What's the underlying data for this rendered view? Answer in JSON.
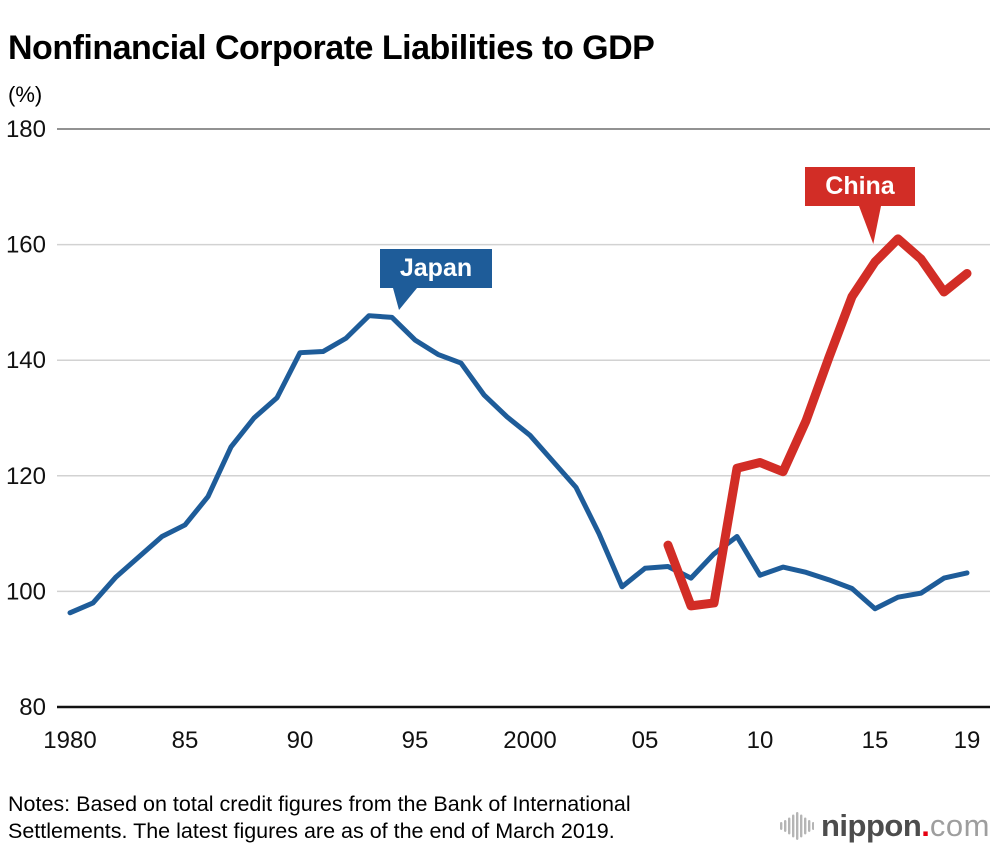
{
  "header": {
    "title": "Nonfinancial Corporate Liabilities to GDP",
    "unit_label": "(%)"
  },
  "chart_data": {
    "type": "line",
    "title": "Nonfinancial Corporate Liabilities to GDP",
    "ylabel": "(%)",
    "xlabel": "",
    "ylim": [
      80,
      180
    ],
    "xlim": [
      1980,
      2019
    ],
    "grid": "horizontal",
    "legend_position": "inline-callouts",
    "y_ticks": [
      180,
      160,
      140,
      120,
      100,
      80
    ],
    "x_ticks": [
      {
        "label": "1980",
        "year": 1980
      },
      {
        "label": "85",
        "year": 1985
      },
      {
        "label": "90",
        "year": 1990
      },
      {
        "label": "95",
        "year": 1995
      },
      {
        "label": "2000",
        "year": 2000
      },
      {
        "label": "05",
        "year": 2005
      },
      {
        "label": "10",
        "year": 2010
      },
      {
        "label": "15",
        "year": 2015
      },
      {
        "label": "19",
        "year": 2019
      }
    ],
    "colors": {
      "axis": "#111111",
      "grid": "#d2d2d2",
      "grid_top": "#6e6e6e",
      "japan": "#1e5c99",
      "china": "#d22d26"
    },
    "series": [
      {
        "name": "Japan",
        "color": "#1e5c99",
        "line_width": 5,
        "start_year": 1980,
        "values": [
          96.3,
          98,
          102.5,
          106,
          109.5,
          111.5,
          116.4,
          125,
          130,
          133.5,
          141.3,
          141.5,
          143.8,
          147.7,
          147.4,
          143.5,
          141,
          139.5,
          134,
          130.2,
          127,
          122.5,
          118,
          110,
          100.8,
          104,
          104.3,
          102.3,
          106.5,
          109.5,
          102.8,
          104.2,
          103.3,
          102,
          100.5,
          97,
          99,
          99.7,
          102.3,
          103.2
        ]
      },
      {
        "name": "China",
        "color": "#d22d26",
        "line_width": 9,
        "start_year": 2006,
        "values": [
          108,
          97.5,
          98,
          121.3,
          122.3,
          120.7,
          129.5,
          140.5,
          151,
          157,
          161,
          157.5,
          151.8,
          155
        ]
      }
    ]
  },
  "footer": {
    "notes_line1": "Notes: Based on total credit figures from the Bank of International",
    "notes_line2": "Settlements. The latest figures are as of the end of March 2019.",
    "logo": {
      "brand": "nippon",
      "dot": ".",
      "tld": "com",
      "dot_color": "#e60012"
    }
  }
}
